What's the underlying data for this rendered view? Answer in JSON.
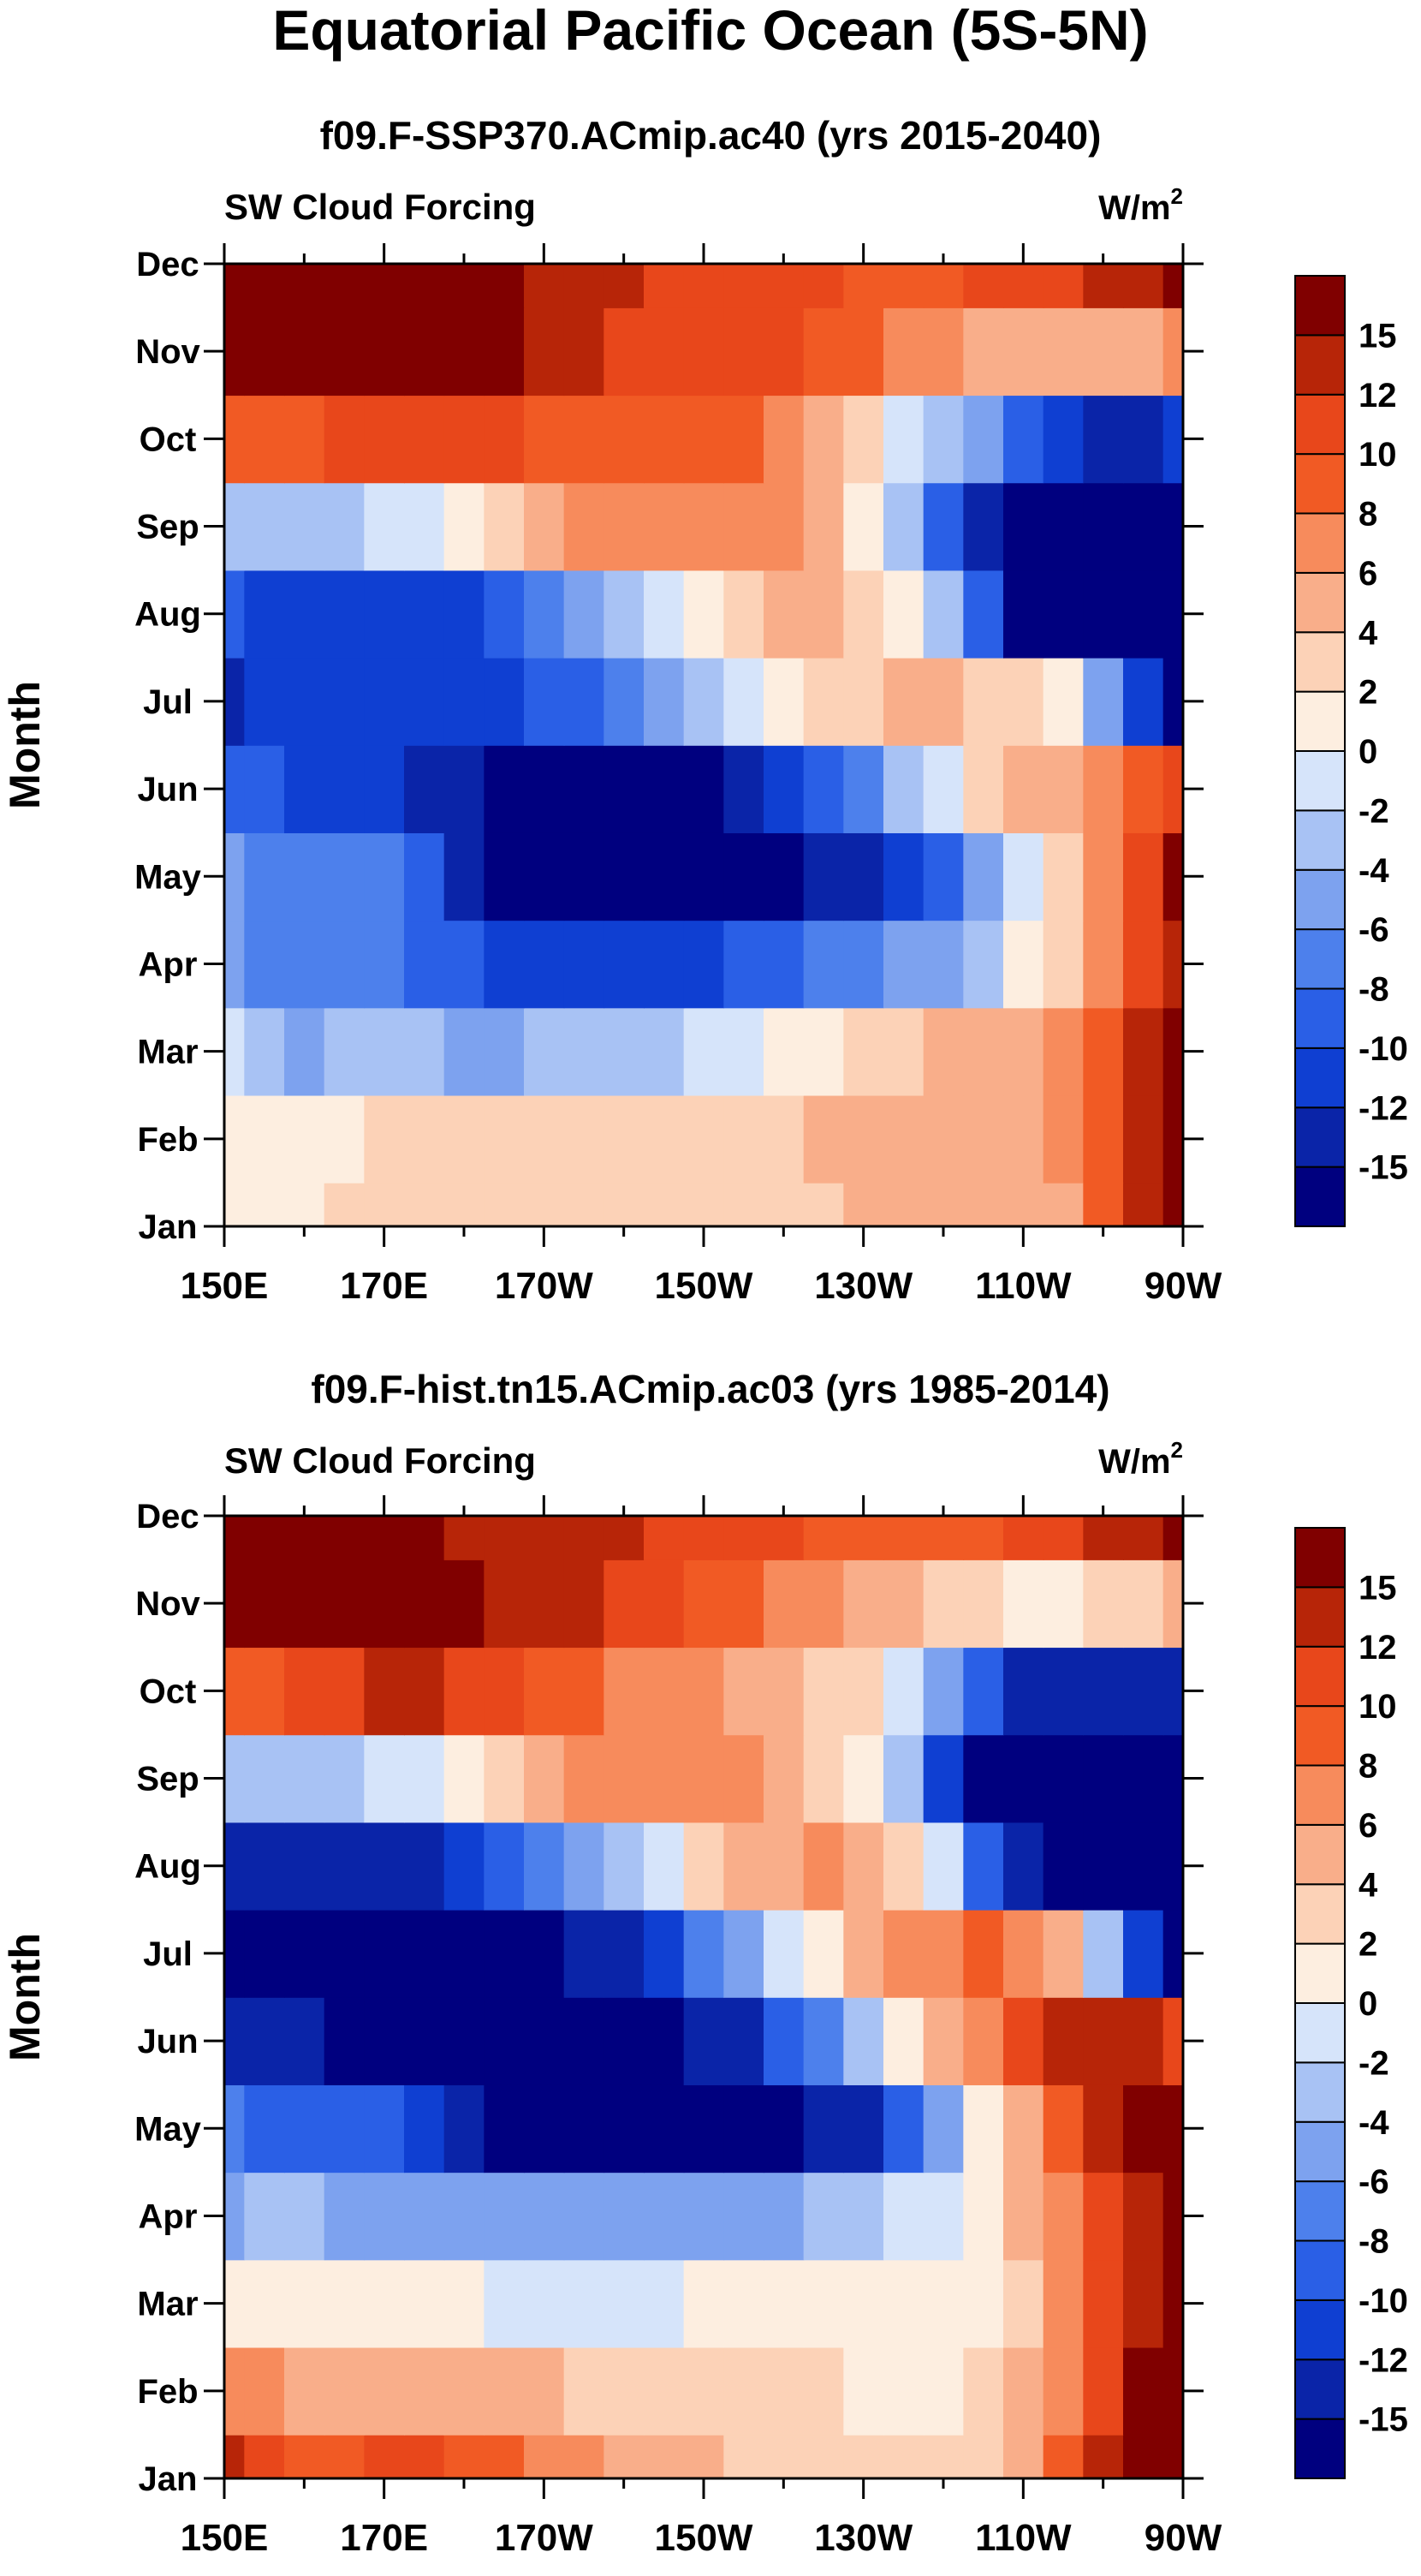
{
  "figure": {
    "title": "Equatorial Pacific Ocean (5S-5N)"
  },
  "colorbar": {
    "levels": [
      -15,
      -12,
      -10,
      -8,
      -6,
      -4,
      -2,
      0,
      2,
      4,
      6,
      8,
      10,
      12,
      15
    ],
    "labels": [
      "-15",
      "-12",
      "-10",
      "-8",
      "-6",
      "-4",
      "-2",
      "0",
      "2",
      "4",
      "6",
      "8",
      "10",
      "12",
      "15"
    ],
    "colors": [
      "#00007f",
      "#0a24a8",
      "#0f3fd2",
      "#2a5fe6",
      "#4d80ec",
      "#7da2ef",
      "#a8c2f4",
      "#d6e4fa",
      "#fdeee0",
      "#fcd2b7",
      "#f9ae8a",
      "#f78b5c",
      "#f15a24",
      "#e8471b",
      "#b72508",
      "#800000"
    ]
  },
  "chart_data": [
    {
      "type": "heatmap",
      "title": "f09.F-SSP370.ACmip.ac40 (yrs 2015-2040)",
      "left_label": "SW Cloud Forcing",
      "units_base": "W/m",
      "units_sup": "2",
      "ylabel": "Month",
      "xlabel": "",
      "x_tick_labels": [
        "150E",
        "170E",
        "170W",
        "150W",
        "130W",
        "110W",
        "90W"
      ],
      "y_tick_labels": [
        "Jan",
        "Feb",
        "Mar",
        "Apr",
        "May",
        "Jun",
        "Jul",
        "Aug",
        "Sep",
        "Oct",
        "Nov",
        "Dec"
      ],
      "x_lon_deg": [
        150,
        155,
        160,
        165,
        170,
        175,
        180,
        185,
        190,
        195,
        200,
        205,
        210,
        215,
        220,
        225,
        230,
        235,
        240,
        245,
        250,
        255,
        260,
        265,
        270
      ],
      "y_month": [
        1,
        2,
        3,
        4,
        5,
        6,
        7,
        8,
        9,
        10,
        11,
        12
      ],
      "values": [
        [
          1,
          1,
          1,
          2,
          2,
          3,
          3,
          3,
          3,
          3,
          2,
          2,
          2,
          3,
          3,
          3,
          4,
          4,
          4,
          4,
          5,
          5,
          8,
          12,
          16
        ],
        [
          1,
          0,
          1,
          1,
          2,
          3,
          3,
          3,
          3,
          3,
          3,
          3,
          3,
          3,
          3,
          4,
          4,
          4,
          4,
          5,
          5,
          6,
          9,
          13,
          16
        ],
        [
          -2,
          -4,
          -5,
          -4,
          -4,
          -4,
          -5,
          -5,
          -4,
          -4,
          -3,
          -3,
          -2,
          -1,
          0,
          1,
          2,
          3,
          4,
          4,
          5,
          6,
          9,
          13,
          16
        ],
        [
          -5,
          -7,
          -8,
          -7,
          -8,
          -9,
          -10,
          -11,
          -11,
          -11,
          -11,
          -11,
          -11,
          -10,
          -9,
          -8,
          -7,
          -6,
          -5,
          -3,
          0,
          3,
          6,
          10,
          13
        ],
        [
          -6,
          -7,
          -8,
          -7,
          -8,
          -10,
          -13,
          -17,
          -17,
          -17,
          -17,
          -17,
          -17,
          -17,
          -16,
          -15,
          -14,
          -12,
          -10,
          -6,
          -2,
          2,
          6,
          10,
          15
        ],
        [
          -9,
          -10,
          -11,
          -12,
          -12,
          -13,
          -14,
          -17,
          -17,
          -17,
          -17,
          -17,
          -16,
          -14,
          -12,
          -10,
          -7,
          -4,
          -1,
          2,
          4,
          5,
          7,
          9,
          10
        ],
        [
          -13,
          -12,
          -11,
          -11,
          -11,
          -11,
          -11,
          -11,
          -10,
          -9,
          -8,
          -6,
          -4,
          -2,
          0,
          2,
          3,
          4,
          4,
          3,
          2,
          0,
          -5,
          -12,
          -17
        ],
        [
          -9,
          -11,
          -12,
          -12,
          -12,
          -12,
          -11,
          -9,
          -7,
          -5,
          -3,
          -1,
          1,
          3,
          4,
          4,
          3,
          0,
          -4,
          -10,
          -16,
          -17,
          -17,
          -17,
          -17
        ],
        [
          -3,
          -4,
          -4,
          -3,
          -2,
          -1,
          1,
          3,
          5,
          6,
          7,
          7,
          7,
          7,
          6,
          4,
          1,
          -4,
          -10,
          -15,
          -17,
          -17,
          -17,
          -17,
          -17
        ],
        [
          9,
          8,
          9,
          10,
          11,
          11,
          11,
          10,
          9,
          9,
          8,
          8,
          8,
          8,
          6,
          4,
          2,
          -1,
          -3,
          -6,
          -9,
          -12,
          -13,
          -13,
          -12
        ],
        [
          16,
          16,
          16,
          16,
          16,
          16,
          16,
          15,
          14,
          12,
          11,
          10,
          10,
          10,
          10,
          9,
          8,
          7,
          6,
          5,
          4,
          4,
          4,
          5,
          6
        ],
        [
          16,
          16,
          16,
          16,
          16,
          16,
          16,
          15,
          14,
          13,
          12,
          11,
          10,
          10,
          10,
          10,
          9,
          9,
          9,
          10,
          10,
          11,
          12,
          14,
          16
        ]
      ]
    },
    {
      "type": "heatmap",
      "title": "f09.F-hist.tn15.ACmip.ac03 (yrs 1985-2014)",
      "left_label": "SW Cloud Forcing",
      "units_base": "W/m",
      "units_sup": "2",
      "ylabel": "Month",
      "xlabel": "",
      "x_tick_labels": [
        "150E",
        "170E",
        "170W",
        "150W",
        "130W",
        "110W",
        "90W"
      ],
      "y_tick_labels": [
        "Jan",
        "Feb",
        "Mar",
        "Apr",
        "May",
        "Jun",
        "Jul",
        "Aug",
        "Sep",
        "Oct",
        "Nov",
        "Dec"
      ],
      "x_lon_deg": [
        150,
        155,
        160,
        165,
        170,
        175,
        180,
        185,
        190,
        195,
        200,
        205,
        210,
        215,
        220,
        225,
        230,
        235,
        240,
        245,
        250,
        255,
        260,
        265,
        270
      ],
      "y_month": [
        1,
        2,
        3,
        4,
        5,
        6,
        7,
        8,
        9,
        10,
        11,
        12
      ],
      "values": [
        [
          12,
          10,
          9,
          9,
          10,
          10,
          9,
          8,
          7,
          6,
          5,
          4,
          4,
          3,
          3,
          2,
          2,
          2,
          2,
          3,
          5,
          8,
          12,
          15,
          16
        ],
        [
          7,
          6,
          5,
          5,
          5,
          5,
          5,
          5,
          4,
          3,
          3,
          2,
          2,
          2,
          2,
          2,
          1,
          1,
          1,
          2,
          4,
          7,
          11,
          15,
          16
        ],
        [
          1,
          1,
          0,
          1,
          1,
          1,
          0,
          -1,
          -1,
          -1,
          -1,
          -1,
          0,
          0,
          1,
          1,
          1,
          1,
          1,
          1,
          3,
          6,
          10,
          14,
          16
        ],
        [
          -5,
          -4,
          -4,
          -5,
          -6,
          -6,
          -6,
          -6,
          -6,
          -6,
          -6,
          -6,
          -6,
          -6,
          -5,
          -4,
          -3,
          -2,
          -1,
          1,
          4,
          7,
          10,
          13,
          16
        ],
        [
          -8,
          -9,
          -10,
          -9,
          -10,
          -12,
          -13,
          -16,
          -17,
          -17,
          -17,
          -17,
          -17,
          -17,
          -16,
          -15,
          -13,
          -10,
          -6,
          0,
          5,
          9,
          12,
          15,
          16
        ],
        [
          -13,
          -14,
          -15,
          -16,
          -16,
          -17,
          -17,
          -17,
          -17,
          -17,
          -17,
          -16,
          -15,
          -13,
          -10,
          -7,
          -3,
          1,
          4,
          7,
          10,
          12,
          13,
          14,
          10
        ],
        [
          -16,
          -16,
          -17,
          -17,
          -17,
          -17,
          -17,
          -17,
          -16,
          -15,
          -13,
          -11,
          -8,
          -5,
          -2,
          1,
          4,
          6,
          7,
          8,
          7,
          4,
          -3,
          -12,
          -17
        ],
        [
          -13,
          -14,
          -14,
          -14,
          -14,
          -13,
          -12,
          -10,
          -8,
          -6,
          -3,
          -1,
          2,
          4,
          5,
          6,
          5,
          3,
          -2,
          -9,
          -15,
          -17,
          -17,
          -17,
          -17
        ],
        [
          -3,
          -4,
          -4,
          -3,
          -2,
          -1,
          1,
          3,
          5,
          6,
          6,
          6,
          6,
          6,
          5,
          3,
          0,
          -4,
          -11,
          -16,
          -17,
          -17,
          -17,
          -17,
          -17
        ],
        [
          9,
          9,
          10,
          11,
          12,
          12,
          11,
          10,
          9,
          8,
          7,
          7,
          6,
          5,
          4,
          3,
          2,
          -1,
          -5,
          -9,
          -13,
          -14,
          -15,
          -15,
          -13
        ],
        [
          16,
          16,
          16,
          16,
          16,
          16,
          15,
          14,
          13,
          12,
          11,
          10,
          9,
          8,
          7,
          6,
          5,
          4,
          3,
          2,
          1,
          1,
          2,
          3,
          5
        ],
        [
          16,
          16,
          16,
          16,
          16,
          15,
          14,
          13,
          13,
          12,
          12,
          11,
          11,
          10,
          10,
          9,
          9,
          9,
          9,
          9,
          10,
          11,
          12,
          13,
          15
        ]
      ]
    }
  ]
}
